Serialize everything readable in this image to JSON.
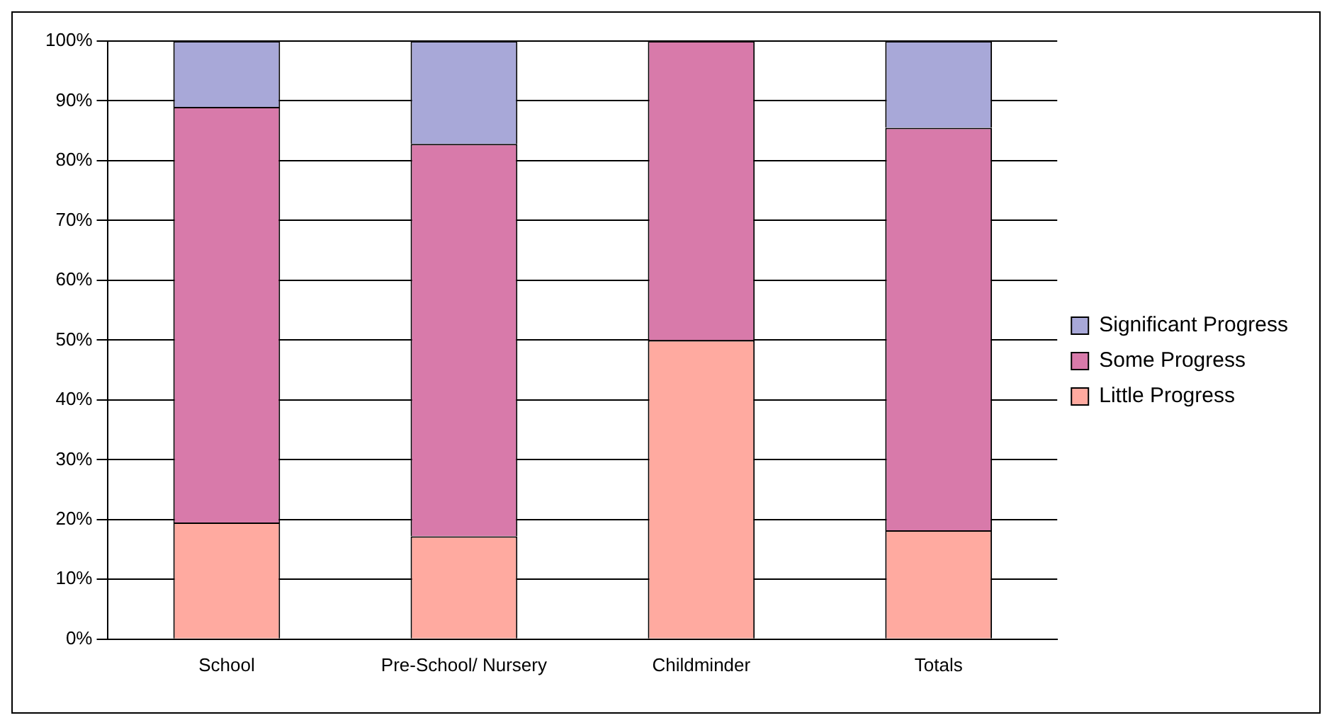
{
  "chart_data": {
    "type": "bar",
    "stacked": true,
    "categories": [
      "School",
      "Pre-School/ Nursery",
      "Childminder",
      "Totals"
    ],
    "series": [
      {
        "name": "Little Progress",
        "color": "#ffaaa0",
        "values": [
          19.5,
          17.2,
          50,
          18.2
        ]
      },
      {
        "name": "Some Progress",
        "color": "#d87aaa",
        "values": [
          69.5,
          65.6,
          50,
          67.3
        ]
      },
      {
        "name": "Significant Progress",
        "color": "#a8a8d8",
        "values": [
          11,
          17.2,
          0,
          14.5
        ]
      }
    ],
    "ylim": [
      0,
      100
    ],
    "yticks": [
      {
        "value": 0,
        "label": "0%"
      },
      {
        "value": 10,
        "label": "10%"
      },
      {
        "value": 20,
        "label": "20%"
      },
      {
        "value": 30,
        "label": "30%"
      },
      {
        "value": 40,
        "label": "40%"
      },
      {
        "value": 50,
        "label": "50%"
      },
      {
        "value": 60,
        "label": "60%"
      },
      {
        "value": 70,
        "label": "70%"
      },
      {
        "value": 80,
        "label": "80%"
      },
      {
        "value": 90,
        "label": "90%"
      },
      {
        "value": 100,
        "label": "100%"
      }
    ],
    "grid": "y",
    "legend": "right"
  }
}
